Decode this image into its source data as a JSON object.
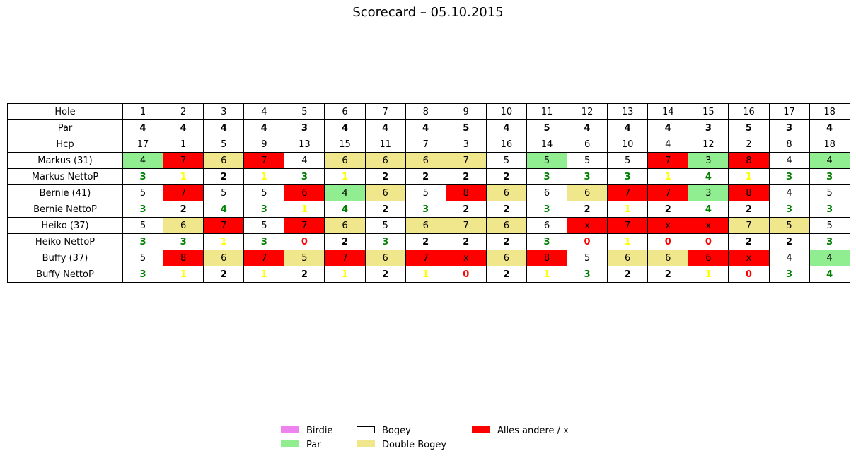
{
  "chart_data": {
    "type": "table",
    "title": "Scorecard – 05.10.2015",
    "colors": {
      "Birdie": "#ee82ee",
      "Par": "#90ee90",
      "Bogey": "#ffffff",
      "Double": "#f0e68c",
      "Other": "#ff0000",
      "netto_green": "#008000",
      "netto_yellow": "#ffff00",
      "netto_black": "#000000",
      "netto_red": "#ff0000"
    },
    "legend": [
      {
        "key": "Birdie",
        "label": "Birdie"
      },
      {
        "key": "Par",
        "label": "Par"
      },
      {
        "key": "Bogey",
        "label": "Bogey"
      },
      {
        "key": "Double",
        "label": "Double Bogey"
      },
      {
        "key": "Other",
        "label": "Alles andere / x"
      }
    ],
    "rows": [
      {
        "label": "Hole",
        "kind": "plain",
        "values": [
          "1",
          "2",
          "3",
          "4",
          "5",
          "6",
          "7",
          "8",
          "9",
          "10",
          "11",
          "12",
          "13",
          "14",
          "15",
          "16",
          "17",
          "18"
        ]
      },
      {
        "label": "Par",
        "kind": "bold",
        "values": [
          "4",
          "4",
          "4",
          "4",
          "3",
          "4",
          "4",
          "4",
          "5",
          "4",
          "5",
          "4",
          "4",
          "4",
          "3",
          "5",
          "3",
          "4"
        ]
      },
      {
        "label": "Hcp",
        "kind": "plain",
        "values": [
          "17",
          "1",
          "5",
          "9",
          "13",
          "15",
          "11",
          "7",
          "3",
          "16",
          "14",
          "6",
          "10",
          "4",
          "12",
          "2",
          "8",
          "18"
        ]
      },
      {
        "label": "Markus (31)",
        "kind": "score",
        "values": [
          "4",
          "7",
          "6",
          "7",
          "4",
          "6",
          "6",
          "6",
          "7",
          "5",
          "5",
          "5",
          "5",
          "7",
          "3",
          "8",
          "4",
          "4"
        ],
        "classes": [
          "Par",
          "Other",
          "Double",
          "Other",
          "Bogey",
          "Double",
          "Double",
          "Double",
          "Double",
          "Bogey",
          "Par",
          "Bogey",
          "Bogey",
          "Other",
          "Par",
          "Other",
          "Bogey",
          "Par"
        ]
      },
      {
        "label": "Markus NettoP",
        "kind": "netto",
        "values": [
          "3",
          "1",
          "2",
          "1",
          "3",
          "1",
          "2",
          "2",
          "2",
          "2",
          "3",
          "3",
          "3",
          "1",
          "4",
          "1",
          "3",
          "3"
        ],
        "colors": [
          "green",
          "yellow",
          "black",
          "yellow",
          "green",
          "yellow",
          "black",
          "black",
          "black",
          "black",
          "green",
          "green",
          "green",
          "yellow",
          "green",
          "yellow",
          "green",
          "green"
        ]
      },
      {
        "label": "Bernie (41)",
        "kind": "score",
        "values": [
          "5",
          "7",
          "5",
          "5",
          "6",
          "4",
          "6",
          "5",
          "8",
          "6",
          "6",
          "6",
          "7",
          "7",
          "3",
          "8",
          "4",
          "5"
        ],
        "classes": [
          "Bogey",
          "Other",
          "Bogey",
          "Bogey",
          "Other",
          "Par",
          "Double",
          "Bogey",
          "Other",
          "Double",
          "Bogey",
          "Double",
          "Other",
          "Other",
          "Par",
          "Other",
          "Bogey",
          "Bogey"
        ]
      },
      {
        "label": "Bernie NettoP",
        "kind": "netto",
        "values": [
          "3",
          "2",
          "4",
          "3",
          "1",
          "4",
          "2",
          "3",
          "2",
          "2",
          "3",
          "2",
          "1",
          "2",
          "4",
          "2",
          "3",
          "3"
        ],
        "colors": [
          "green",
          "black",
          "green",
          "green",
          "yellow",
          "green",
          "black",
          "green",
          "black",
          "black",
          "green",
          "black",
          "yellow",
          "black",
          "green",
          "black",
          "green",
          "green"
        ]
      },
      {
        "label": "Heiko (37)",
        "kind": "score",
        "values": [
          "5",
          "6",
          "7",
          "5",
          "7",
          "6",
          "5",
          "6",
          "7",
          "6",
          "6",
          "x",
          "7",
          "x",
          "x",
          "7",
          "5",
          "5"
        ],
        "classes": [
          "Bogey",
          "Double",
          "Other",
          "Bogey",
          "Other",
          "Double",
          "Bogey",
          "Double",
          "Double",
          "Double",
          "Bogey",
          "Other",
          "Other",
          "Other",
          "Other",
          "Double",
          "Double",
          "Bogey"
        ]
      },
      {
        "label": "Heiko NettoP",
        "kind": "netto",
        "values": [
          "3",
          "3",
          "1",
          "3",
          "0",
          "2",
          "3",
          "2",
          "2",
          "2",
          "3",
          "0",
          "1",
          "0",
          "0",
          "2",
          "2",
          "3"
        ],
        "colors": [
          "green",
          "green",
          "yellow",
          "green",
          "red",
          "black",
          "green",
          "black",
          "black",
          "black",
          "green",
          "red",
          "yellow",
          "red",
          "red",
          "black",
          "black",
          "green"
        ]
      },
      {
        "label": "Buffy (37)",
        "kind": "score",
        "values": [
          "5",
          "8",
          "6",
          "7",
          "5",
          "7",
          "6",
          "7",
          "x",
          "6",
          "8",
          "5",
          "6",
          "6",
          "6",
          "x",
          "4",
          "4"
        ],
        "classes": [
          "Bogey",
          "Other",
          "Double",
          "Other",
          "Double",
          "Other",
          "Double",
          "Other",
          "Other",
          "Double",
          "Other",
          "Bogey",
          "Double",
          "Double",
          "Other",
          "Other",
          "Bogey",
          "Par"
        ]
      },
      {
        "label": "Buffy NettoP",
        "kind": "netto",
        "values": [
          "3",
          "1",
          "2",
          "1",
          "2",
          "1",
          "2",
          "1",
          "0",
          "2",
          "1",
          "3",
          "2",
          "2",
          "1",
          "0",
          "3",
          "4"
        ],
        "colors": [
          "green",
          "yellow",
          "black",
          "yellow",
          "black",
          "yellow",
          "black",
          "yellow",
          "red",
          "black",
          "yellow",
          "green",
          "black",
          "black",
          "yellow",
          "red",
          "green",
          "green"
        ]
      }
    ]
  }
}
